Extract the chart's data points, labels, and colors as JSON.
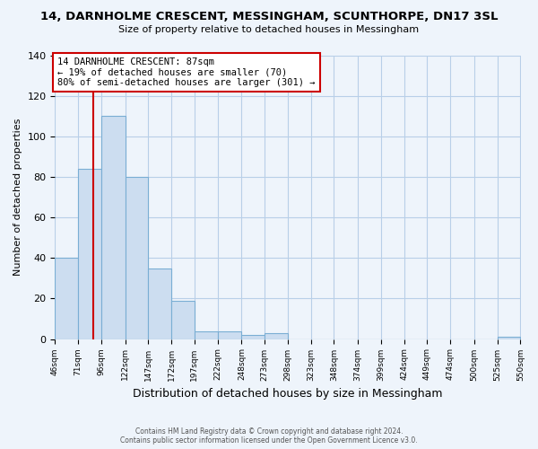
{
  "title": "14, DARNHOLME CRESCENT, MESSINGHAM, SCUNTHORPE, DN17 3SL",
  "subtitle": "Size of property relative to detached houses in Messingham",
  "xlabel": "Distribution of detached houses by size in Messingham",
  "ylabel": "Number of detached properties",
  "bar_edges": [
    46,
    71,
    96,
    122,
    147,
    172,
    197,
    222,
    248,
    273,
    298,
    323,
    348,
    374,
    399,
    424,
    449,
    474,
    500,
    525,
    550
  ],
  "bar_heights": [
    40,
    84,
    110,
    80,
    35,
    19,
    4,
    4,
    2,
    3,
    0,
    0,
    0,
    0,
    0,
    0,
    0,
    0,
    0,
    1
  ],
  "bar_fill_color": "#ccddf0",
  "bar_edge_color": "#7aaed4",
  "vline_x": 87,
  "vline_color": "#cc0000",
  "ylim": [
    0,
    140
  ],
  "annotation_text_line1": "14 DARNHOLME CRESCENT: 87sqm",
  "annotation_text_line2": "← 19% of detached houses are smaller (70)",
  "annotation_text_line3": "80% of semi-detached houses are larger (301) →",
  "tick_labels": [
    "46sqm",
    "71sqm",
    "96sqm",
    "122sqm",
    "147sqm",
    "172sqm",
    "197sqm",
    "222sqm",
    "248sqm",
    "273sqm",
    "298sqm",
    "323sqm",
    "348sqm",
    "374sqm",
    "399sqm",
    "424sqm",
    "449sqm",
    "474sqm",
    "500sqm",
    "525sqm",
    "550sqm"
  ],
  "footer_line1": "Contains HM Land Registry data © Crown copyright and database right 2024.",
  "footer_line2": "Contains public sector information licensed under the Open Government Licence v3.0.",
  "background_color": "#eef4fb",
  "grid_color": "#b8cfe8",
  "title_fontsize": 9.5,
  "subtitle_fontsize": 8,
  "ylabel_fontsize": 8,
  "xlabel_fontsize": 9,
  "tick_fontsize": 6.5,
  "yticks": [
    0,
    20,
    40,
    60,
    80,
    100,
    120,
    140
  ]
}
